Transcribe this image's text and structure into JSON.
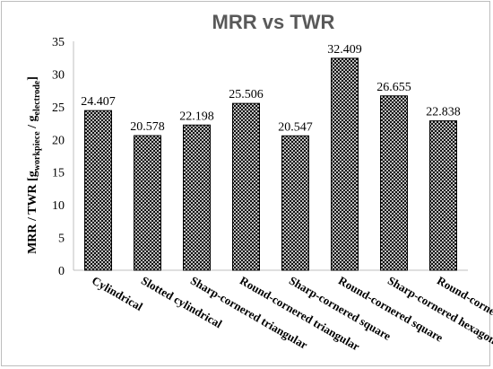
{
  "chart_data": {
    "type": "bar",
    "title": "MRR vs TWR",
    "ylabel": "MRR / TWR [g",
    "ylabel_sub1": "workpiece",
    "ylabel_mid": " / g",
    "ylabel_sub2": "electrode",
    "ylabel_end": "]",
    "xlabel": "",
    "ylim": [
      0,
      35
    ],
    "yticks": [
      0,
      5,
      10,
      15,
      20,
      25,
      30,
      35
    ],
    "grid": false,
    "legend": "none",
    "bar_color": "#000000",
    "categories": [
      "Cylindrical",
      "Slotted cylindrical",
      "Sharp-cornered triangular",
      "Round-cornered triangular",
      "Sharp-cornered square",
      "Round-cornered square",
      "Sharp-cornered hexagonal",
      "Round-cornered hexagonal"
    ],
    "values": [
      24.407,
      20.578,
      22.198,
      25.506,
      20.547,
      32.409,
      26.655,
      22.838
    ],
    "value_labels": [
      "24.407",
      "20.578",
      "22.198",
      "25.506",
      "20.547",
      "32.409",
      "26.655",
      "22.838"
    ]
  }
}
